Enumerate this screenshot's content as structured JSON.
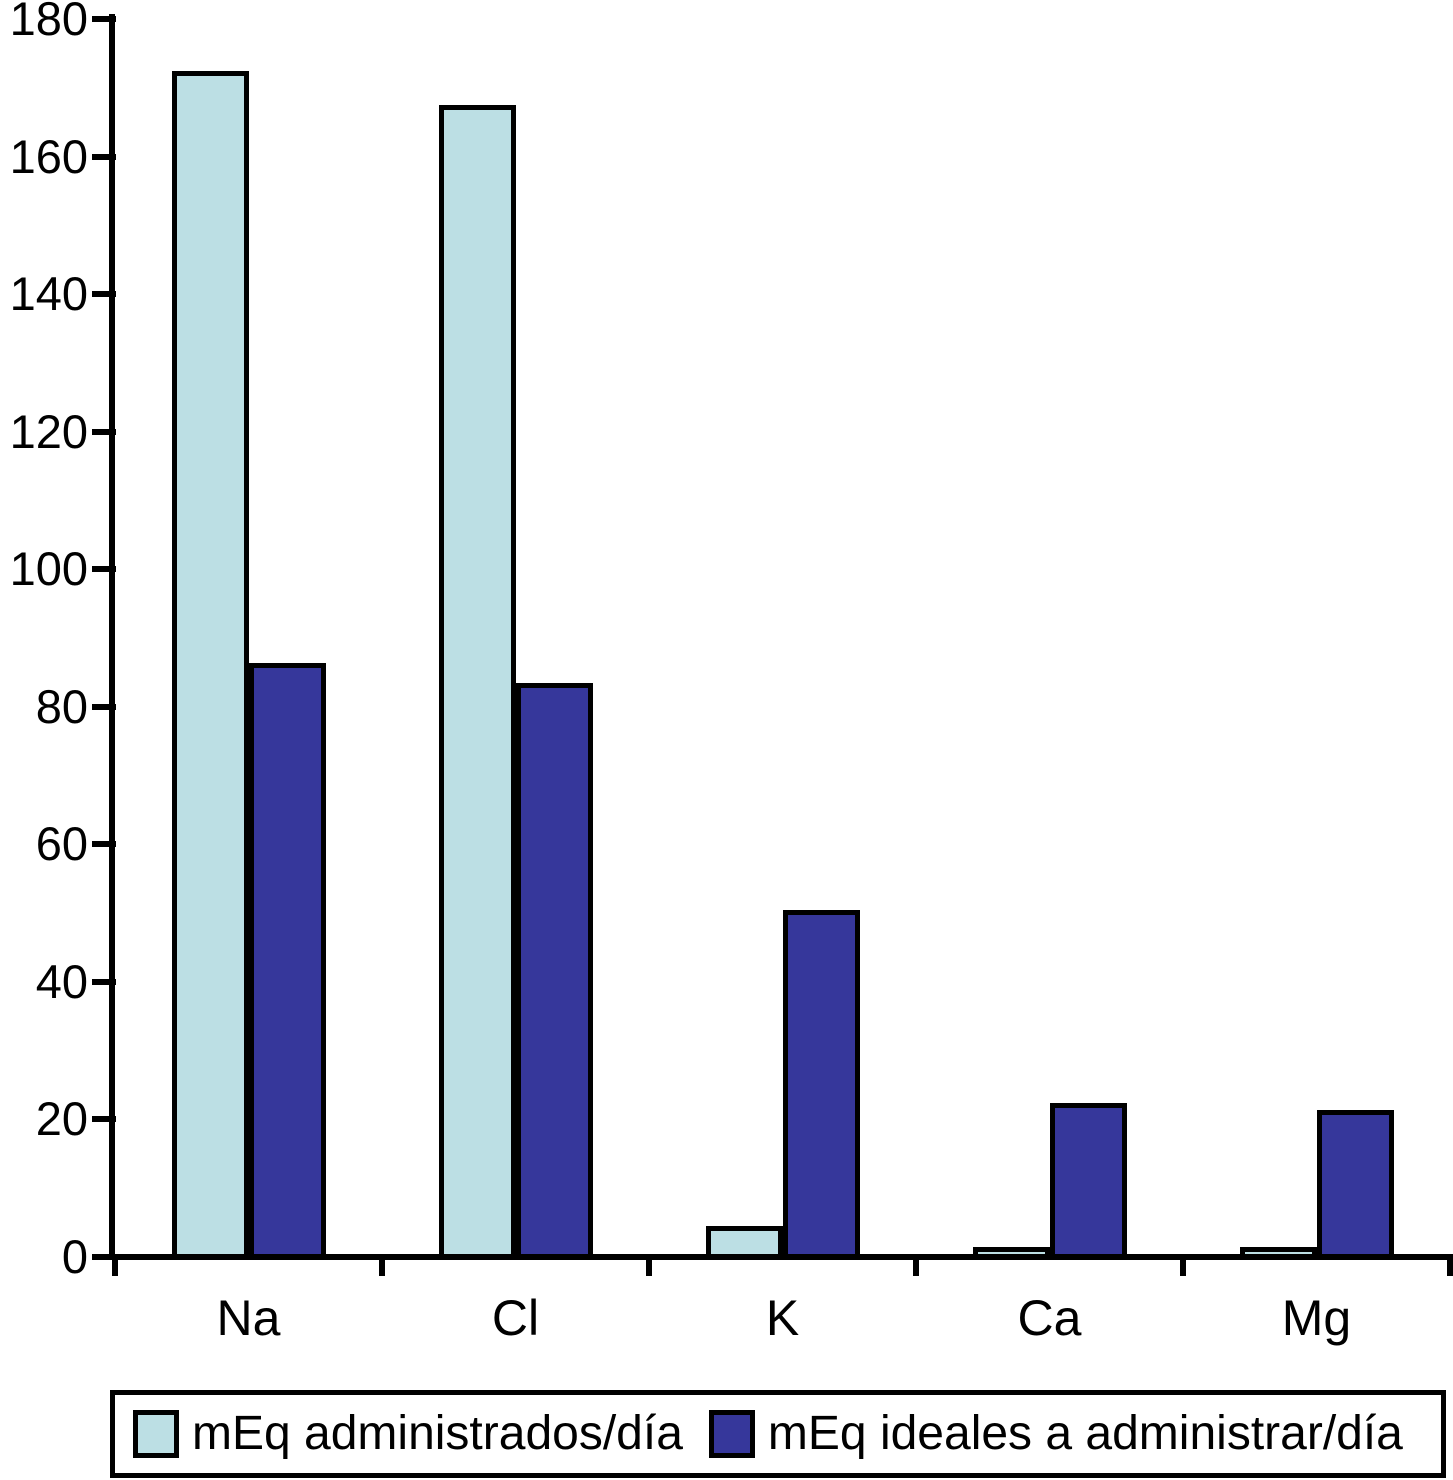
{
  "figure": {
    "background_color": "#ffffff",
    "axis_color": "#000000",
    "bar_outline_color": "#000000"
  },
  "chart_data": {
    "type": "bar",
    "title": "",
    "xlabel": "",
    "ylabel": "",
    "categories": [
      "Na",
      "Cl",
      "K",
      "Ca",
      "Mg"
    ],
    "series": [
      {
        "name": "mEq administrados/día",
        "color": "#bcdfe4",
        "values": [
          172,
          167,
          4,
          1,
          1
        ]
      },
      {
        "name": "mEq ideales a administrar/día",
        "color": "#36379b",
        "values": [
          86,
          83,
          50,
          22,
          21
        ]
      }
    ],
    "ylim": [
      0,
      180
    ],
    "yticks": [
      0,
      20,
      40,
      60,
      80,
      100,
      120,
      140,
      160,
      180
    ],
    "grid": false,
    "legend_position": "bottom"
  }
}
